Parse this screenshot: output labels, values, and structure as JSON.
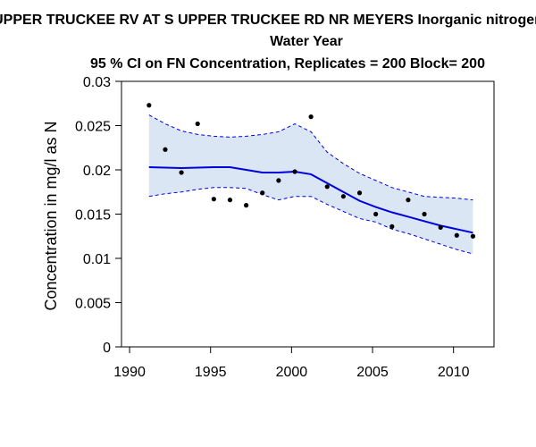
{
  "chart_data": {
    "type": "scatter",
    "title_lines": [
      "UPPER TRUCKEE RV AT S UPPER TRUCKEE RD NR MEYERS   Inorganic nitrogen",
      "Water Year",
      "95 % CI on FN Concentration, Replicates = 200 Block= 200"
    ],
    "xlabel": "",
    "ylabel": "Concentration in mg/l as N",
    "xlim": [
      1989.5,
      2012.5
    ],
    "ylim": [
      0,
      0.03
    ],
    "x_ticks": [
      1990,
      1995,
      2000,
      2005,
      2010
    ],
    "x_tick_labels": [
      "1990",
      "1995",
      "2000",
      "2005",
      "2010"
    ],
    "y_ticks": [
      0,
      0.005,
      0.01,
      0.015,
      0.02,
      0.025,
      0.03
    ],
    "y_tick_labels": [
      "0",
      "0.005",
      "0.01",
      "0.015",
      "0.02",
      "0.025",
      "0.03"
    ],
    "grid": false,
    "colors": {
      "points": "#000000",
      "trend_line": "#0000dd",
      "ci_band": "#dbe6f5",
      "ci_line": "#0000dd"
    },
    "points": {
      "x": [
        1991.2,
        1992.2,
        1993.2,
        1994.2,
        1995.2,
        1996.2,
        1997.2,
        1998.2,
        1999.2,
        2000.2,
        2001.2,
        2002.2,
        2003.2,
        2004.2,
        2005.2,
        2006.2,
        2007.2,
        2008.2,
        2009.2,
        2010.2,
        2011.2
      ],
      "y": [
        0.0273,
        0.0223,
        0.0197,
        0.0252,
        0.0167,
        0.0166,
        0.016,
        0.0174,
        0.0188,
        0.0198,
        0.026,
        0.0181,
        0.017,
        0.0174,
        0.015,
        0.0136,
        0.0166,
        0.015,
        0.0135,
        0.0126,
        0.0125
      ]
    },
    "trend": {
      "x": [
        1991.2,
        1993.2,
        1995.2,
        1996.2,
        1997.2,
        1998.2,
        1999.2,
        2000.2,
        2001.2,
        2002.2,
        2003.2,
        2004.2,
        2005.2,
        2006.2,
        2007.2,
        2008.2,
        2009.2,
        2010.2,
        2011.2
      ],
      "y": [
        0.0203,
        0.0202,
        0.0203,
        0.0203,
        0.02,
        0.0197,
        0.0197,
        0.0198,
        0.0195,
        0.0185,
        0.0175,
        0.0165,
        0.0158,
        0.0152,
        0.0147,
        0.0142,
        0.0137,
        0.0133,
        0.0129
      ]
    },
    "ci_upper": {
      "x": [
        1991.2,
        1992.2,
        1993.2,
        1994.2,
        1995.2,
        1996.2,
        1997.2,
        1998.2,
        1999.2,
        2000.2,
        2001.2,
        2002.2,
        2003.2,
        2004.2,
        2005.2,
        2006.2,
        2007.2,
        2008.2,
        2009.2,
        2010.2,
        2011.2
      ],
      "y": [
        0.0262,
        0.0252,
        0.0244,
        0.024,
        0.0238,
        0.0237,
        0.0238,
        0.024,
        0.0243,
        0.0252,
        0.0243,
        0.022,
        0.0207,
        0.0196,
        0.0188,
        0.018,
        0.0175,
        0.017,
        0.0169,
        0.0168,
        0.0166
      ]
    },
    "ci_lower": {
      "x": [
        1991.2,
        1992.2,
        1993.2,
        1994.2,
        1995.2,
        1996.2,
        1997.2,
        1998.2,
        1999.2,
        2000.2,
        2001.2,
        2002.2,
        2003.2,
        2004.2,
        2005.2,
        2006.2,
        2007.2,
        2008.2,
        2009.2,
        2010.2,
        2011.2
      ],
      "y": [
        0.017,
        0.0173,
        0.0175,
        0.0178,
        0.018,
        0.018,
        0.0179,
        0.0172,
        0.0166,
        0.017,
        0.017,
        0.0161,
        0.0153,
        0.0145,
        0.0141,
        0.0133,
        0.0128,
        0.0122,
        0.0116,
        0.011,
        0.0105
      ]
    }
  }
}
